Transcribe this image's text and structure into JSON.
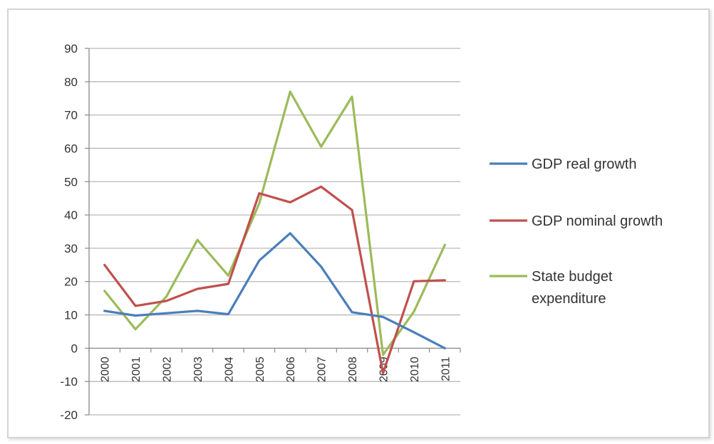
{
  "chart_data": {
    "type": "line",
    "title": "",
    "xlabel": "",
    "ylabel": "",
    "x": [
      "2000",
      "2001",
      "2002",
      "2003",
      "2004",
      "2005",
      "2006",
      "2007",
      "2008",
      "2009",
      "2010",
      "2011"
    ],
    "ylim": [
      -20,
      90
    ],
    "yticks": [
      90,
      80,
      70,
      60,
      50,
      40,
      30,
      20,
      10,
      0,
      -10,
      -20
    ],
    "grid": true,
    "legend_position": "right",
    "series": [
      {
        "name": "GDP real growth",
        "color": "#4a7ebb",
        "values": [
          11.2,
          9.8,
          10.5,
          11.2,
          10.2,
          26.3,
          34.5,
          24.5,
          10.8,
          9.4,
          4.8,
          0
        ]
      },
      {
        "name": "GDP nominal growth",
        "color": "#c0504d",
        "values": [
          25,
          12.7,
          14.2,
          17.8,
          19.3,
          46.5,
          43.8,
          48.5,
          41.5,
          -7.5,
          20.1,
          20.4
        ]
      },
      {
        "name": "State budget expenditure",
        "color": "#9bbb59",
        "legend_lines": [
          "State budget",
          "expenditure"
        ],
        "values": [
          17.2,
          5.7,
          15.5,
          32.5,
          21.8,
          43.5,
          77,
          60.5,
          75.5,
          -2,
          11,
          31
        ]
      }
    ]
  }
}
